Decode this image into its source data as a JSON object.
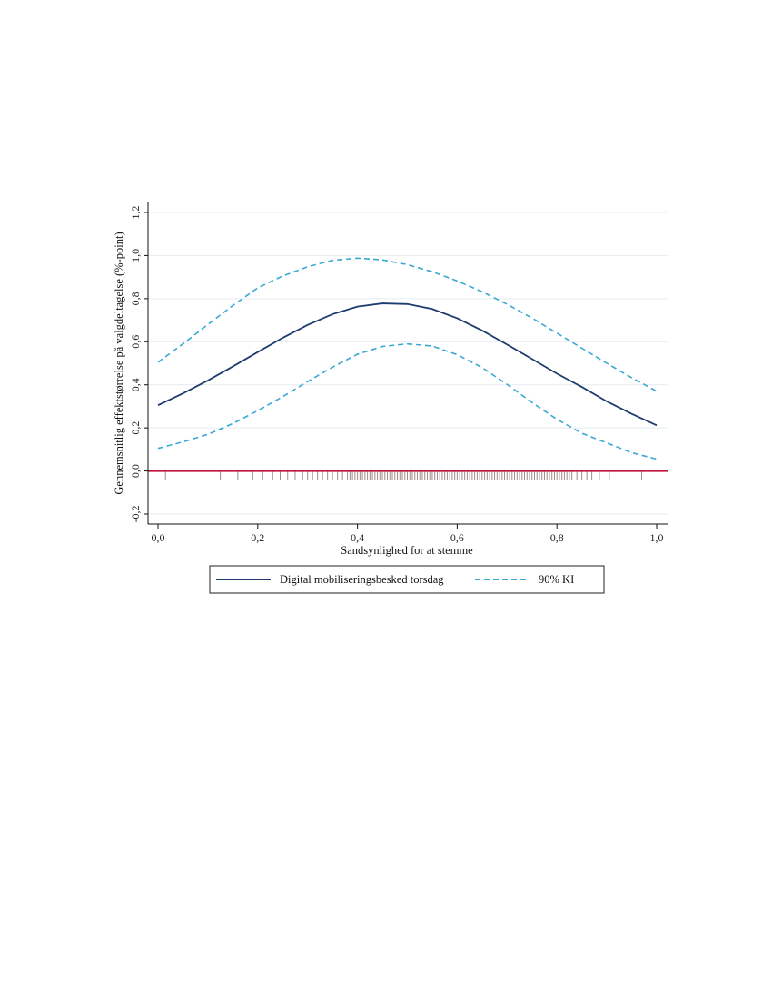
{
  "chart_data": {
    "type": "line",
    "xlabel": "Sandsynlighed for at stemme",
    "ylabel": "Gennemsnitlig effektstørrelse på valgdeltagelse (%-point)",
    "xlim": [
      0,
      1
    ],
    "ylim": [
      -0.2,
      1.2
    ],
    "x_ticks": [
      0,
      0.2,
      0.4,
      0.6,
      0.8,
      1.0
    ],
    "x_tick_labels": [
      "0,0",
      "0,2",
      "0,4",
      "0,6",
      "0,8",
      "1,0"
    ],
    "y_ticks": [
      -0.2,
      0,
      0.2,
      0.4,
      0.6,
      0.8,
      1.0,
      1.2
    ],
    "y_tick_labels": [
      "-0,2",
      "0,0",
      "0,2",
      "0,4",
      "0,6",
      "0,8",
      "1,0",
      "1,2"
    ],
    "grid": "horizontal",
    "legend_position": "bottom",
    "reference_line": {
      "y": 0,
      "color": "#c0143c"
    },
    "x": [
      0.0,
      0.05,
      0.1,
      0.15,
      0.2,
      0.25,
      0.3,
      0.35,
      0.4,
      0.45,
      0.5,
      0.55,
      0.6,
      0.65,
      0.7,
      0.75,
      0.8,
      0.85,
      0.9,
      0.95,
      1.0
    ],
    "series": [
      {
        "name": "Digital mobiliseringsbesked torsdag",
        "style": "solid",
        "color": "#1f3c6e",
        "values": [
          0.305,
          0.36,
          0.42,
          0.485,
          0.552,
          0.618,
          0.678,
          0.728,
          0.763,
          0.778,
          0.775,
          0.752,
          0.709,
          0.652,
          0.587,
          0.52,
          0.452,
          0.39,
          0.323,
          0.265,
          0.212
        ]
      },
      {
        "name": "90% KI",
        "style": "dashed",
        "color": "#3ba8d4",
        "values": [
          0.505,
          0.59,
          0.68,
          0.768,
          0.85,
          0.905,
          0.948,
          0.978,
          0.988,
          0.98,
          0.958,
          0.925,
          0.882,
          0.832,
          0.774,
          0.71,
          0.64,
          0.57,
          0.5,
          0.433,
          0.37
        ]
      },
      {
        "name": "90% KI",
        "style": "dashed",
        "color": "#3ba8d4",
        "values": [
          0.105,
          0.135,
          0.17,
          0.22,
          0.28,
          0.345,
          0.415,
          0.482,
          0.542,
          0.578,
          0.59,
          0.58,
          0.54,
          0.48,
          0.402,
          0.318,
          0.24,
          0.175,
          0.13,
          0.085,
          0.055
        ]
      }
    ],
    "rug_x": [
      0.015,
      0.125,
      0.16,
      0.19,
      0.21,
      0.23,
      0.245,
      0.26,
      0.275,
      0.29,
      0.3,
      0.31,
      0.32,
      0.33,
      0.34,
      0.35,
      0.36,
      0.37,
      0.38,
      0.385,
      0.39,
      0.395,
      0.4,
      0.405,
      0.41,
      0.415,
      0.42,
      0.425,
      0.43,
      0.435,
      0.44,
      0.445,
      0.45,
      0.455,
      0.46,
      0.465,
      0.47,
      0.475,
      0.48,
      0.485,
      0.49,
      0.495,
      0.5,
      0.505,
      0.51,
      0.515,
      0.52,
      0.525,
      0.53,
      0.535,
      0.54,
      0.545,
      0.55,
      0.555,
      0.56,
      0.565,
      0.57,
      0.575,
      0.58,
      0.585,
      0.59,
      0.595,
      0.6,
      0.605,
      0.61,
      0.615,
      0.62,
      0.625,
      0.63,
      0.635,
      0.64,
      0.645,
      0.65,
      0.655,
      0.66,
      0.665,
      0.67,
      0.675,
      0.68,
      0.685,
      0.69,
      0.695,
      0.7,
      0.705,
      0.71,
      0.715,
      0.72,
      0.725,
      0.73,
      0.735,
      0.74,
      0.745,
      0.75,
      0.755,
      0.76,
      0.765,
      0.77,
      0.775,
      0.78,
      0.785,
      0.79,
      0.795,
      0.8,
      0.805,
      0.81,
      0.815,
      0.82,
      0.825,
      0.83,
      0.84,
      0.85,
      0.86,
      0.87,
      0.885,
      0.905,
      0.97
    ],
    "legend": [
      {
        "label": "Digital mobiliseringsbesked torsdag",
        "style": "solid",
        "color": "#1f3c6e"
      },
      {
        "label": "90% KI",
        "style": "dashed",
        "color": "#3ba8d4"
      }
    ]
  }
}
